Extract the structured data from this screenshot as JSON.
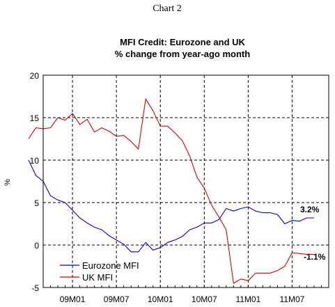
{
  "page_heading": "Chart 2",
  "chart_data": {
    "type": "line",
    "title": "MFI Credit: Eurozone and UK",
    "subtitle": "% change from year-ago month",
    "ylabel": "%",
    "xlabel": "",
    "ylim": [
      -5,
      20
    ],
    "yticks": [
      -5,
      0,
      5,
      10,
      15,
      20
    ],
    "xticks": [
      {
        "label": "09M01",
        "t": 0
      },
      {
        "label": "09M07",
        "t": 6
      },
      {
        "label": "10M01",
        "t": 12
      },
      {
        "label": "10M07",
        "t": 18
      },
      {
        "label": "11M01",
        "t": 24
      },
      {
        "label": "11M07",
        "t": 30
      }
    ],
    "x_start_label": "08M07",
    "x_range": [
      -4,
      35
    ],
    "grid": true,
    "legend_position": "bottom-left",
    "series": [
      {
        "name": "Eurozone MFI",
        "color": "#0000cc",
        "x": [
          "08M07",
          "08M08",
          "08M09",
          "08M10",
          "08M11",
          "08M12",
          "09M01",
          "09M02",
          "09M03",
          "09M04",
          "09M05",
          "09M06",
          "09M07",
          "09M08",
          "09M09",
          "09M10",
          "09M11",
          "09M12",
          "10M01",
          "10M02",
          "10M03",
          "10M04",
          "10M05",
          "10M06",
          "10M07",
          "10M08",
          "10M09",
          "10M10",
          "10M11",
          "10M12",
          "11M01",
          "11M02",
          "11M03",
          "11M04",
          "11M05",
          "11M06",
          "11M07",
          "11M08",
          "11M09",
          "11M10"
        ],
        "values": [
          10.0,
          8.2,
          7.5,
          5.8,
          5.3,
          5.0,
          4.1,
          3.2,
          2.6,
          2.1,
          1.8,
          1.1,
          0.6,
          0.1,
          -0.8,
          -0.8,
          0.3,
          -0.6,
          -0.3,
          0.3,
          0.6,
          1.0,
          1.8,
          2.1,
          2.6,
          2.6,
          3.0,
          4.3,
          4.0,
          4.3,
          4.5,
          4.0,
          3.8,
          3.8,
          3.6,
          2.5,
          2.9,
          2.8,
          3.2,
          3.2
        ],
        "end_label": "3.2%"
      },
      {
        "name": "UK MFI",
        "color": "#dd0000",
        "x": [
          "08M07",
          "08M08",
          "08M09",
          "08M10",
          "08M11",
          "08M12",
          "09M01",
          "09M02",
          "09M03",
          "09M04",
          "09M05",
          "09M06",
          "09M07",
          "09M08",
          "09M09",
          "09M10",
          "09M11",
          "09M12",
          "10M01",
          "10M02",
          "10M03",
          "10M04",
          "10M05",
          "10M06",
          "10M07",
          "10M08",
          "10M09",
          "10M10",
          "10M11",
          "10M12",
          "11M01",
          "11M02",
          "11M03",
          "11M04",
          "11M05",
          "11M06",
          "11M07",
          "11M08",
          "11M09",
          "11M10"
        ],
        "values": [
          12.5,
          13.8,
          13.7,
          13.8,
          15.0,
          14.7,
          15.5,
          14.2,
          14.8,
          13.3,
          13.8,
          13.4,
          12.8,
          12.9,
          12.2,
          11.3,
          17.2,
          15.8,
          14.0,
          14.0,
          13.2,
          12.3,
          10.5,
          8.0,
          6.7,
          4.7,
          3.3,
          1.8,
          -4.5,
          -4.0,
          -4.2,
          -3.3,
          -3.3,
          -3.3,
          -3.0,
          -2.5,
          -0.9,
          -1.0,
          -1.1,
          -1.1
        ],
        "end_label": "-1.1%"
      }
    ]
  }
}
